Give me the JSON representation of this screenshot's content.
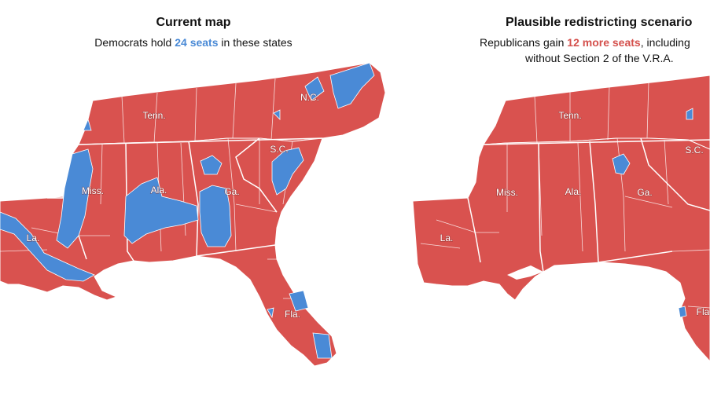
{
  "colors": {
    "republican": "#d9524f",
    "democrat": "#4a8ad6",
    "border": "#ffffff"
  },
  "left_panel": {
    "title": "Current map",
    "subtitle_pre": "Democrats hold ",
    "subtitle_highlight": "24 seats",
    "subtitle_post": " in these states",
    "state_labels": {
      "tenn": "Tenn.",
      "nc": "N.C.",
      "sc": "S.C.",
      "miss": "Miss.",
      "ala": "Ala.",
      "ga": "Ga.",
      "la": "La.",
      "fla": "Fla."
    }
  },
  "right_panel": {
    "title": "Plausible redistricting scenario",
    "subtitle_pre": "Republicans gain ",
    "subtitle_highlight": "12 more seats",
    "subtitle_post": ", including",
    "subtitle_line2": "without Section 2 of the V.R.A.",
    "state_labels": {
      "tenn": "Tenn.",
      "sc": "S.C.",
      "miss": "Miss.",
      "ala": "Ala.",
      "ga": "Ga.",
      "la": "La.",
      "fla": "Fla"
    }
  }
}
